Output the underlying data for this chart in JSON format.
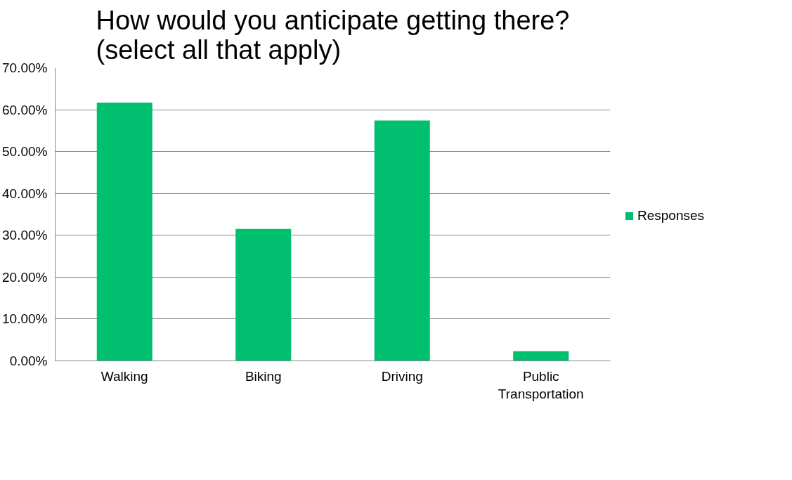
{
  "chart_data": {
    "type": "bar",
    "title": "How would you anticipate getting there?\n(select all that apply)",
    "categories": [
      "Walking",
      "Biking",
      "Driving",
      "Public Transportation"
    ],
    "series": [
      {
        "name": "Responses",
        "color": "#00bf6f",
        "values": [
          61.7,
          31.5,
          57.4,
          2.3
        ]
      }
    ],
    "ylim": [
      0,
      70
    ],
    "yticks": [
      {
        "value": 0,
        "label": "0.00%"
      },
      {
        "value": 10,
        "label": "10.00%"
      },
      {
        "value": 20,
        "label": "20.00%"
      },
      {
        "value": 30,
        "label": "30.00%"
      },
      {
        "value": 40,
        "label": "40.00%"
      },
      {
        "value": 50,
        "label": "50.00%"
      },
      {
        "value": 60,
        "label": "60.00%"
      },
      {
        "value": 70,
        "label": "70.00%"
      }
    ],
    "grid": "y",
    "legend": "right"
  }
}
